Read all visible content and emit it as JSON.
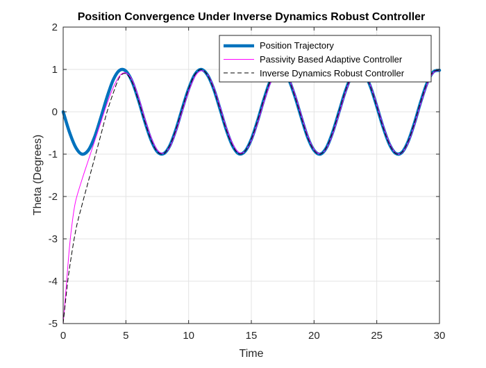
{
  "chart_data": {
    "type": "line",
    "title": "Position Convergence Under Inverse Dynamics Robust Controller",
    "xlabel": "Time",
    "ylabel": "Theta (Degrees)",
    "xlim": [
      0,
      30
    ],
    "ylim": [
      -5,
      2
    ],
    "grid": true,
    "legend_position": "top-right",
    "x_ticks": [
      0,
      5,
      10,
      15,
      20,
      25,
      30
    ],
    "x_tick_labels": [
      "0",
      "5",
      "10",
      "15",
      "20",
      "25",
      "30"
    ],
    "y_ticks": [
      -5,
      -4,
      -3,
      -2,
      -1,
      0,
      1,
      2
    ],
    "y_tick_labels": [
      "-5",
      "-4",
      "-3",
      "-2",
      "-1",
      "0",
      "1",
      "2"
    ],
    "series": [
      {
        "name": "Position Trajectory",
        "color": "#0072BD",
        "style": "solid-thick",
        "x": [
          0,
          0.5,
          1.0,
          1.5,
          2.0,
          2.5,
          3.0,
          3.5,
          4.0,
          4.5,
          5.0,
          5.5,
          6.0,
          6.5,
          7.0,
          7.5,
          8.0,
          8.5,
          9.0,
          9.5,
          10.0,
          10.5,
          11.0,
          11.5,
          12.0,
          12.5,
          13.0,
          13.5,
          14.0,
          14.5,
          15.0,
          15.5,
          16.0,
          16.5,
          17.0,
          17.5,
          18.0,
          18.5,
          19.0,
          19.5,
          20.0,
          20.5,
          21.0,
          21.5,
          22.0,
          22.5,
          23.0,
          23.5,
          24.0,
          24.5,
          25.0,
          25.5,
          26.0,
          26.5,
          27.0,
          27.5,
          28.0,
          28.5,
          29.0,
          29.5,
          30.0
        ],
        "y": [
          0.0,
          -0.48,
          -0.84,
          -1.0,
          -0.91,
          -0.6,
          -0.14,
          0.35,
          0.76,
          0.98,
          0.96,
          0.71,
          0.28,
          -0.22,
          -0.66,
          -0.94,
          -0.99,
          -0.8,
          -0.41,
          0.08,
          0.54,
          0.88,
          1.0,
          0.87,
          0.54,
          0.07,
          -0.42,
          -0.8,
          -0.99,
          -0.93,
          -0.65,
          -0.21,
          0.29,
          0.72,
          0.96,
          0.98,
          0.75,
          0.34,
          -0.15,
          -0.61,
          -0.91,
          -1.0,
          -0.84,
          -0.47,
          0.01,
          0.49,
          0.85,
          1.0,
          0.91,
          0.59,
          0.13,
          -0.36,
          -0.76,
          -0.98,
          -0.96,
          -0.7,
          -0.27,
          0.23,
          0.67,
          0.94,
          0.98
        ]
      },
      {
        "name": "Passivity Based Adaptive Controller",
        "color": "#FF00FF",
        "style": "solid-thin",
        "x": [
          0,
          0.25,
          0.5,
          0.75,
          1.0,
          1.5,
          2.0,
          2.5,
          3.0,
          3.5,
          4.0,
          4.5,
          5.0,
          5.5,
          6.0,
          6.5,
          7.0,
          7.5,
          8.0,
          8.5,
          9.0,
          9.5,
          10.0,
          10.5,
          11.0,
          11.5,
          12.0,
          12.5,
          13.0,
          13.5,
          14.0,
          14.5,
          15.0,
          15.5,
          16.0,
          16.5,
          17.0,
          17.5,
          18.0,
          18.5,
          19.0,
          19.5,
          20.0,
          20.5,
          21.0,
          21.5,
          22.0,
          22.5,
          23.0,
          23.5,
          24.0,
          24.5,
          25.0,
          25.5,
          26.0,
          26.5,
          27.0,
          27.5,
          28.0,
          28.5,
          29.0,
          29.5,
          30.0
        ],
        "y": [
          -5.0,
          -4.1,
          -3.2,
          -2.55,
          -2.1,
          -1.6,
          -1.15,
          -0.7,
          -0.25,
          0.2,
          0.58,
          0.85,
          0.92,
          0.75,
          0.35,
          -0.15,
          -0.6,
          -0.9,
          -0.98,
          -0.83,
          -0.46,
          0.02,
          0.48,
          0.83,
          0.97,
          0.88,
          0.58,
          0.12,
          -0.37,
          -0.75,
          -0.96,
          -0.93,
          -0.68,
          -0.26,
          0.23,
          0.66,
          0.93,
          0.98,
          0.78,
          0.39,
          -0.1,
          -0.57,
          -0.89,
          -0.99,
          -0.86,
          -0.51,
          -0.04,
          0.45,
          0.82,
          0.99,
          0.92,
          0.62,
          0.17,
          -0.32,
          -0.73,
          -0.97,
          -0.97,
          -0.73,
          -0.31,
          0.19,
          0.63,
          0.92,
          0.98
        ]
      },
      {
        "name": "Inverse Dynamics Robust Controller",
        "color": "#000000",
        "style": "dashed",
        "x": [
          0,
          0.25,
          0.5,
          1.0,
          1.5,
          2.0,
          2.5,
          3.0,
          3.5,
          4.0,
          4.5,
          5.0,
          5.5,
          6.0,
          6.5,
          7.0,
          7.5,
          8.0,
          8.5,
          9.0,
          9.5,
          10.0,
          10.5,
          11.0,
          11.5,
          12.0,
          12.5,
          13.0,
          13.5,
          14.0,
          14.5,
          15.0,
          15.5,
          16.0,
          16.5,
          17.0,
          17.5,
          18.0,
          18.5,
          19.0,
          19.5,
          20.0,
          20.5,
          21.0,
          21.5,
          22.0,
          22.5,
          23.0,
          23.5,
          24.0,
          24.5,
          25.0,
          25.5,
          26.0,
          26.5,
          27.0,
          27.5,
          28.0,
          28.5,
          29.0,
          29.5,
          30.0
        ],
        "y": [
          -5.0,
          -4.3,
          -3.7,
          -2.8,
          -2.2,
          -1.65,
          -1.1,
          -0.55,
          0.0,
          0.45,
          0.82,
          0.9,
          0.7,
          0.27,
          -0.22,
          -0.66,
          -0.94,
          -0.99,
          -0.8,
          -0.41,
          0.08,
          0.54,
          0.88,
          1.0,
          0.87,
          0.54,
          0.07,
          -0.42,
          -0.8,
          -0.99,
          -0.93,
          -0.65,
          -0.21,
          0.29,
          0.72,
          0.96,
          0.98,
          0.75,
          0.34,
          -0.15,
          -0.61,
          -0.91,
          -1.0,
          -0.84,
          -0.47,
          0.01,
          0.49,
          0.85,
          1.0,
          0.91,
          0.59,
          0.13,
          -0.36,
          -0.76,
          -0.98,
          -0.96,
          -0.7,
          -0.27,
          0.23,
          0.67,
          0.94,
          0.98
        ]
      }
    ]
  }
}
